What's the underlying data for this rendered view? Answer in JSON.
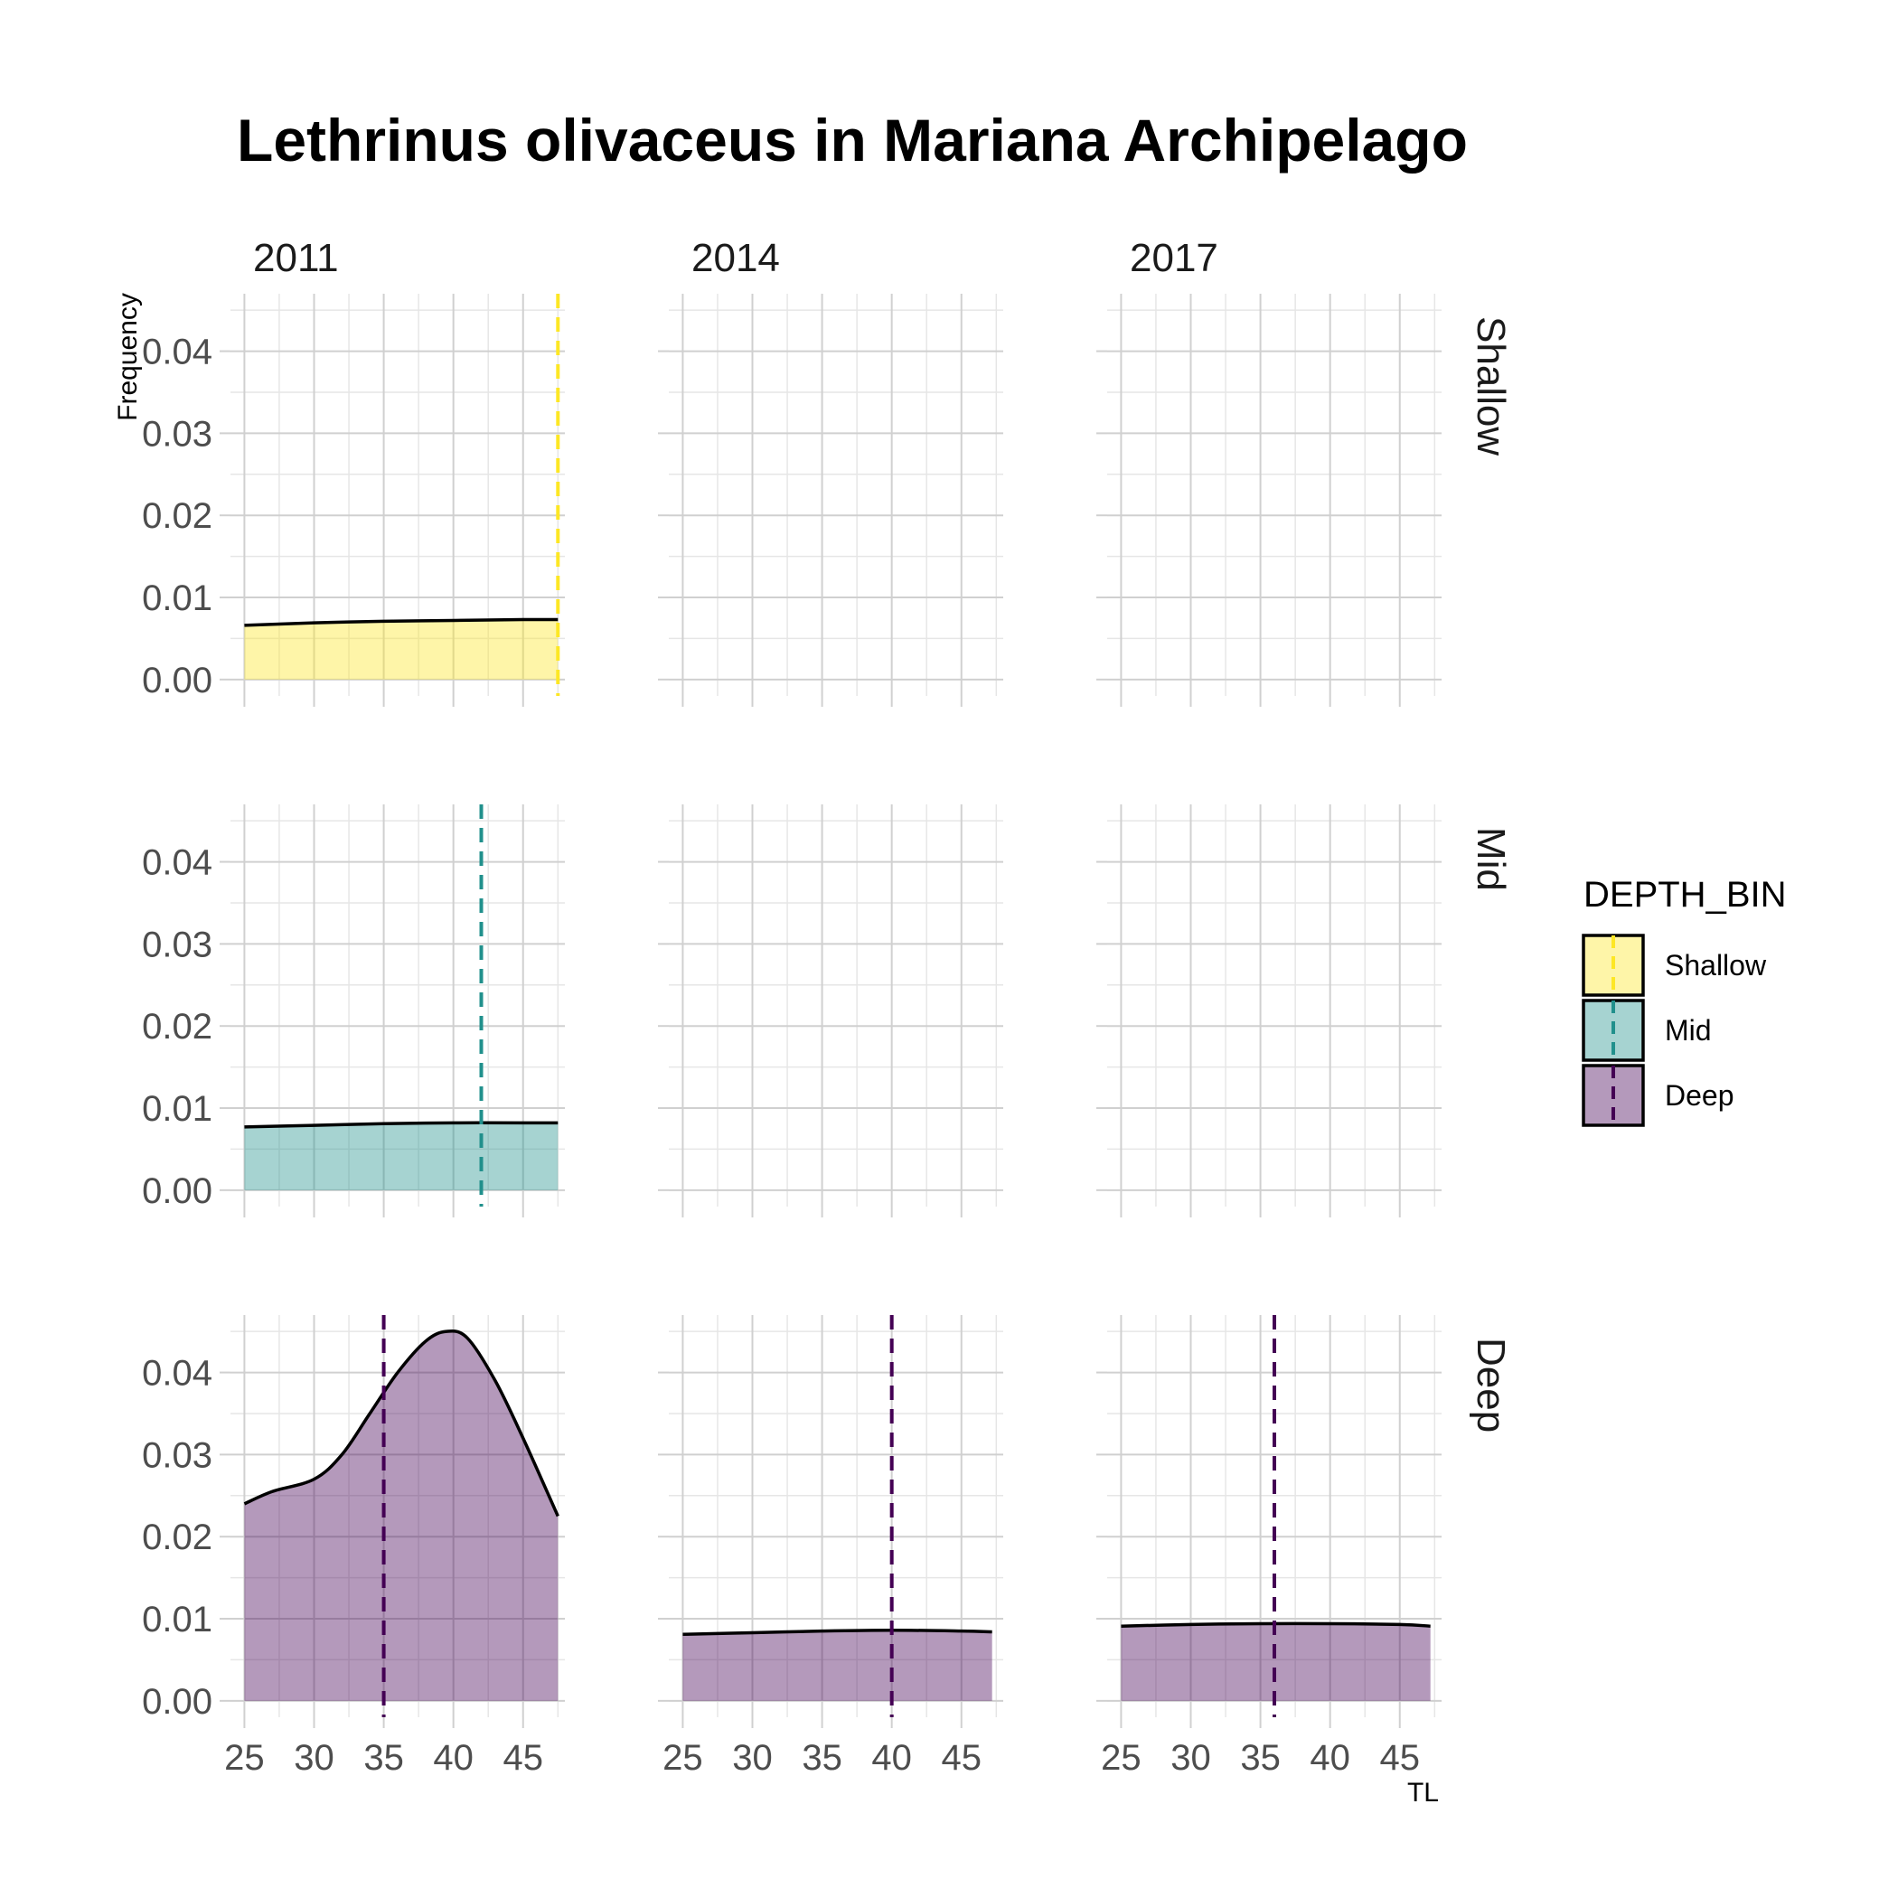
{
  "chart_data": {
    "type": "area",
    "title": "Lethrinus olivaceus in Mariana Archipelago",
    "xlabel": "TL",
    "ylabel": "Frequency",
    "xlim": [
      24,
      48
    ],
    "ylim": [
      -0.002,
      0.047
    ],
    "x_ticks": [
      25,
      30,
      35,
      40,
      45
    ],
    "y_ticks": [
      0.0,
      0.01,
      0.02,
      0.03,
      0.04
    ],
    "x_tick_labels": [
      "25",
      "30",
      "35",
      "40",
      "45"
    ],
    "y_tick_labels": [
      "0.00",
      "0.01",
      "0.02",
      "0.03",
      "0.04"
    ],
    "grid": true,
    "facet_columns": [
      "2011",
      "2014",
      "2017"
    ],
    "facet_rows": [
      "Shallow",
      "Mid",
      "Deep"
    ],
    "legend": {
      "title": "DEPTH_BIN",
      "position": "right",
      "entries": [
        "Shallow",
        "Mid",
        "Deep"
      ]
    },
    "colors": {
      "Shallow": "#FDE725",
      "Mid": "#21908C",
      "Deep": "#440154"
    },
    "panels": [
      {
        "year": "2011",
        "depth": "Shallow",
        "x": [
          25,
          30,
          35,
          40,
          45,
          47.5
        ],
        "y": [
          0.0066,
          0.0069,
          0.0071,
          0.0072,
          0.0073,
          0.0073
        ],
        "mean_line": 47.5
      },
      {
        "year": "2011",
        "depth": "Mid",
        "x": [
          25,
          30,
          35,
          40,
          45,
          47.5
        ],
        "y": [
          0.0077,
          0.0079,
          0.0081,
          0.0082,
          0.0082,
          0.0082
        ],
        "mean_line": 42
      },
      {
        "year": "2011",
        "depth": "Deep",
        "x": [
          25,
          27,
          30,
          32,
          34,
          36,
          38,
          39.5,
          41,
          43,
          45,
          47.5
        ],
        "y": [
          0.024,
          0.0255,
          0.027,
          0.03,
          0.035,
          0.04,
          0.0438,
          0.045,
          0.0442,
          0.039,
          0.032,
          0.0225
        ],
        "mean_line": 35
      },
      {
        "year": "2014",
        "depth": "Deep",
        "x": [
          25,
          30,
          35,
          40,
          45,
          47.2
        ],
        "y": [
          0.0081,
          0.0083,
          0.0085,
          0.0086,
          0.0085,
          0.0084
        ],
        "mean_line": 40
      },
      {
        "year": "2017",
        "depth": "Deep",
        "x": [
          25,
          30,
          35,
          40,
          45,
          47.2
        ],
        "y": [
          0.0091,
          0.0093,
          0.0094,
          0.0094,
          0.0093,
          0.0091
        ],
        "mean_line": 36
      }
    ]
  }
}
